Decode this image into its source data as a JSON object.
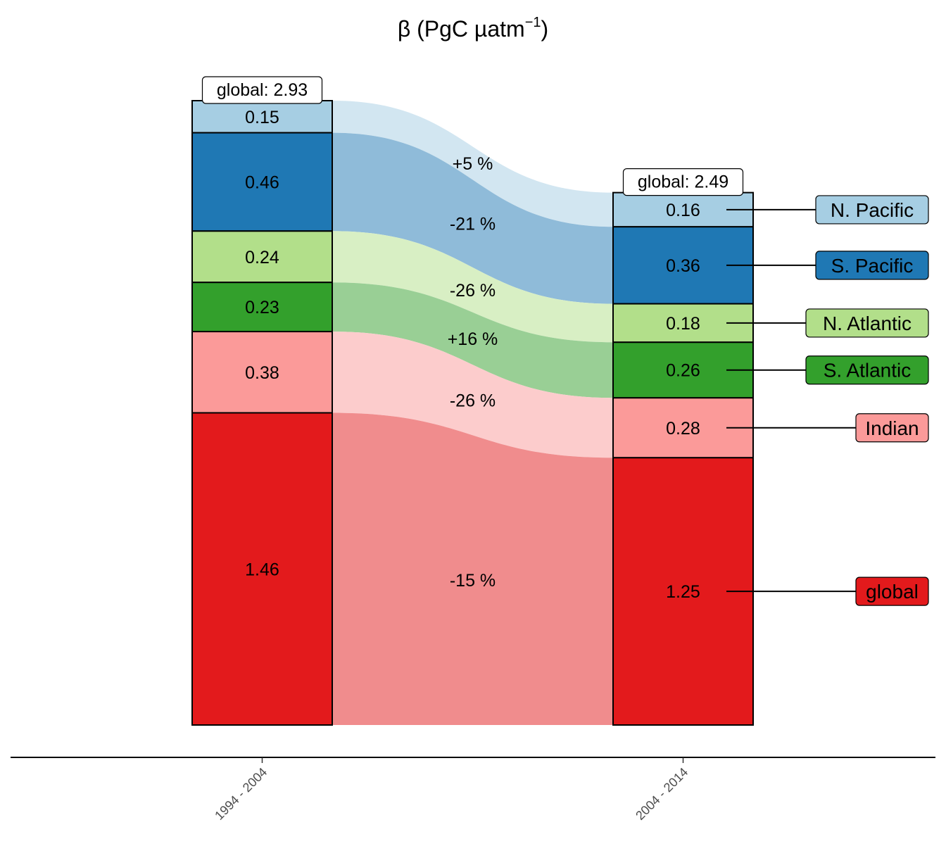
{
  "chart_data": {
    "type": "alluvial",
    "title_main": "β (PgC µatm",
    "title_sup": "−1",
    "title_close": ")",
    "categories": [
      "1994 - 2004",
      "2004 - 2014"
    ],
    "series": [
      {
        "name": "N. Pacific",
        "values": [
          0.15,
          0.16
        ],
        "change": "+5 %",
        "color": "#a6cee3",
        "flow_color": "#d2e6f1"
      },
      {
        "name": "S. Pacific",
        "values": [
          0.46,
          0.36
        ],
        "change": "-21 %",
        "color": "#1f78b4",
        "flow_color": "#8fbbd9"
      },
      {
        "name": "N. Atlantic",
        "values": [
          0.24,
          0.18
        ],
        "change": "-26 %",
        "color": "#b2df8a",
        "flow_color": "#d8efc4"
      },
      {
        "name": "S. Atlantic",
        "values": [
          0.23,
          0.26
        ],
        "change": "+16 %",
        "color": "#33a02c",
        "flow_color": "#99cf95"
      },
      {
        "name": "Indian",
        "values": [
          0.38,
          0.28
        ],
        "change": "-26 %",
        "color": "#fb9a99",
        "flow_color": "#fccccc"
      },
      {
        "name": "global",
        "values": [
          1.46,
          1.25
        ],
        "change": "-15 %",
        "color": "#e31a1c",
        "flow_color": "#f08c8d"
      }
    ],
    "value_labels": [
      [
        "0.15",
        "0.46",
        "0.24",
        "0.23",
        "0.38",
        "1.46"
      ],
      [
        "0.16",
        "0.36",
        "0.18",
        "0.26",
        "0.28",
        "1.25"
      ]
    ],
    "totals": [
      "global: 2.93",
      "global: 2.49"
    ],
    "legend_position": "right",
    "grid": false
  }
}
